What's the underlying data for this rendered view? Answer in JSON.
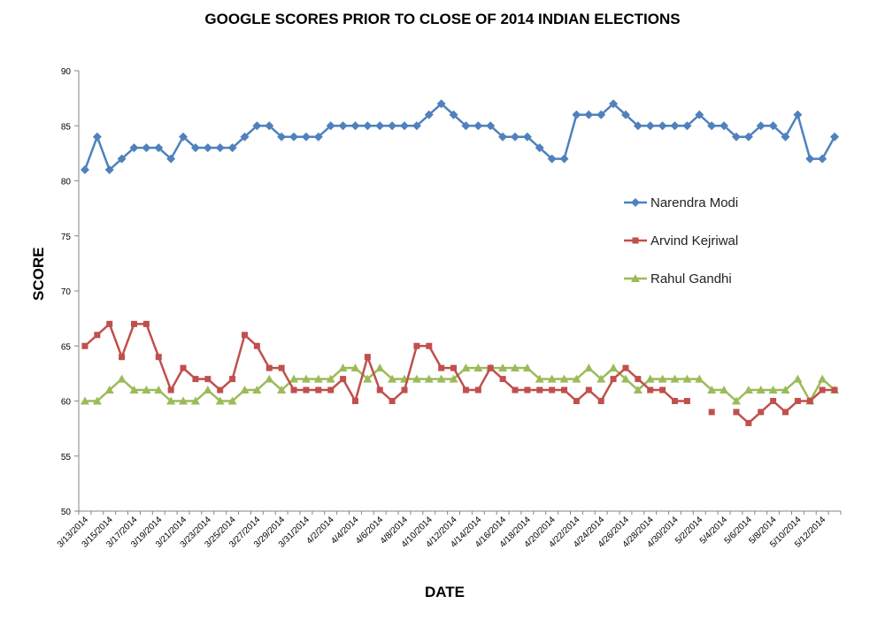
{
  "chart_data": {
    "type": "line",
    "title": "GOOGLE SCORES PRIOR TO CLOSE OF 2014 INDIAN ELECTIONS",
    "xlabel": "DATE",
    "ylabel": "SCORE",
    "ylim": [
      50,
      90
    ],
    "yticks": [
      50,
      55,
      60,
      65,
      70,
      75,
      80,
      85,
      90
    ],
    "grid": false,
    "legend_position": "right",
    "x": [
      "3/13/2014",
      "3/14/2014",
      "3/15/2014",
      "3/16/2014",
      "3/17/2014",
      "3/18/2014",
      "3/19/2014",
      "3/20/2014",
      "3/21/2014",
      "3/22/2014",
      "3/23/2014",
      "3/24/2014",
      "3/25/2014",
      "3/26/2014",
      "3/27/2014",
      "3/28/2014",
      "3/29/2014",
      "3/30/2014",
      "3/31/2014",
      "4/1/2014",
      "4/2/2014",
      "4/3/2014",
      "4/4/2014",
      "4/5/2014",
      "4/6/2014",
      "4/7/2014",
      "4/8/2014",
      "4/9/2014",
      "4/10/2014",
      "4/11/2014",
      "4/12/2014",
      "4/13/2014",
      "4/14/2014",
      "4/15/2014",
      "4/16/2014",
      "4/17/2014",
      "4/18/2014",
      "4/19/2014",
      "4/20/2014",
      "4/21/2014",
      "4/22/2014",
      "4/23/2014",
      "4/24/2014",
      "4/25/2014",
      "4/26/2014",
      "4/27/2014",
      "4/28/2014",
      "4/29/2014",
      "4/30/2014",
      "5/1/2014",
      "5/2/2014",
      "5/3/2014",
      "5/4/2014",
      "5/5/2014",
      "5/6/2014",
      "5/7/2014",
      "5/8/2014",
      "5/9/2014",
      "5/10/2014",
      "5/11/2014",
      "5/12/2014",
      "5/13/2014"
    ],
    "xtick_labels": [
      "3/13/2014",
      "3/15/2014",
      "3/17/2014",
      "3/19/2014",
      "3/21/2014",
      "3/23/2014",
      "3/25/2014",
      "3/27/2014",
      "3/29/2014",
      "3/31/2014",
      "4/2/2014",
      "4/4/2014",
      "4/6/2014",
      "4/8/2014",
      "4/10/2014",
      "4/12/2014",
      "4/14/2014",
      "4/16/2014",
      "4/18/2014",
      "4/20/2014",
      "4/22/2014",
      "4/24/2014",
      "4/26/2014",
      "4/28/2014",
      "4/30/2014",
      "5/2/2014",
      "5/4/2014",
      "5/6/2014",
      "5/8/2014",
      "5/10/2014",
      "5/12/2014"
    ],
    "series": [
      {
        "name": "Narendra Modi",
        "color": "#4F81BD",
        "marker": "diamond",
        "values": [
          81,
          84,
          81,
          82,
          83,
          83,
          83,
          82,
          84,
          83,
          83,
          83,
          83,
          84,
          85,
          85,
          84,
          84,
          84,
          84,
          85,
          85,
          85,
          85,
          85,
          85,
          85,
          85,
          86,
          87,
          86,
          85,
          85,
          85,
          84,
          84,
          84,
          83,
          82,
          82,
          86,
          86,
          86,
          87,
          86,
          85,
          85,
          85,
          85,
          85,
          86,
          85,
          85,
          84,
          84,
          85,
          85,
          84,
          86,
          82,
          82,
          84
        ]
      },
      {
        "name": "Arvind Kejriwal",
        "color": "#C0504D",
        "marker": "square",
        "values": [
          65,
          66,
          67,
          64,
          67,
          67,
          64,
          61,
          63,
          62,
          62,
          61,
          62,
          66,
          65,
          63,
          63,
          61,
          61,
          61,
          61,
          62,
          60,
          64,
          61,
          60,
          61,
          65,
          65,
          63,
          63,
          61,
          61,
          63,
          62,
          61,
          61,
          61,
          61,
          61,
          60,
          61,
          60,
          62,
          63,
          62,
          61,
          61,
          60,
          60,
          null,
          59,
          null,
          59,
          58,
          59,
          60,
          59,
          60,
          60,
          61,
          61
        ]
      },
      {
        "name": "Rahul Gandhi",
        "color": "#9BBB59",
        "marker": "triangle",
        "values": [
          60,
          60,
          61,
          62,
          61,
          61,
          61,
          60,
          60,
          60,
          61,
          60,
          60,
          61,
          61,
          62,
          61,
          62,
          62,
          62,
          62,
          63,
          63,
          62,
          63,
          62,
          62,
          62,
          62,
          62,
          62,
          63,
          63,
          63,
          63,
          63,
          63,
          62,
          62,
          62,
          62,
          63,
          62,
          63,
          62,
          61,
          62,
          62,
          62,
          62,
          62,
          61,
          61,
          60,
          61,
          61,
          61,
          61,
          62,
          60,
          62,
          61
        ]
      }
    ]
  }
}
